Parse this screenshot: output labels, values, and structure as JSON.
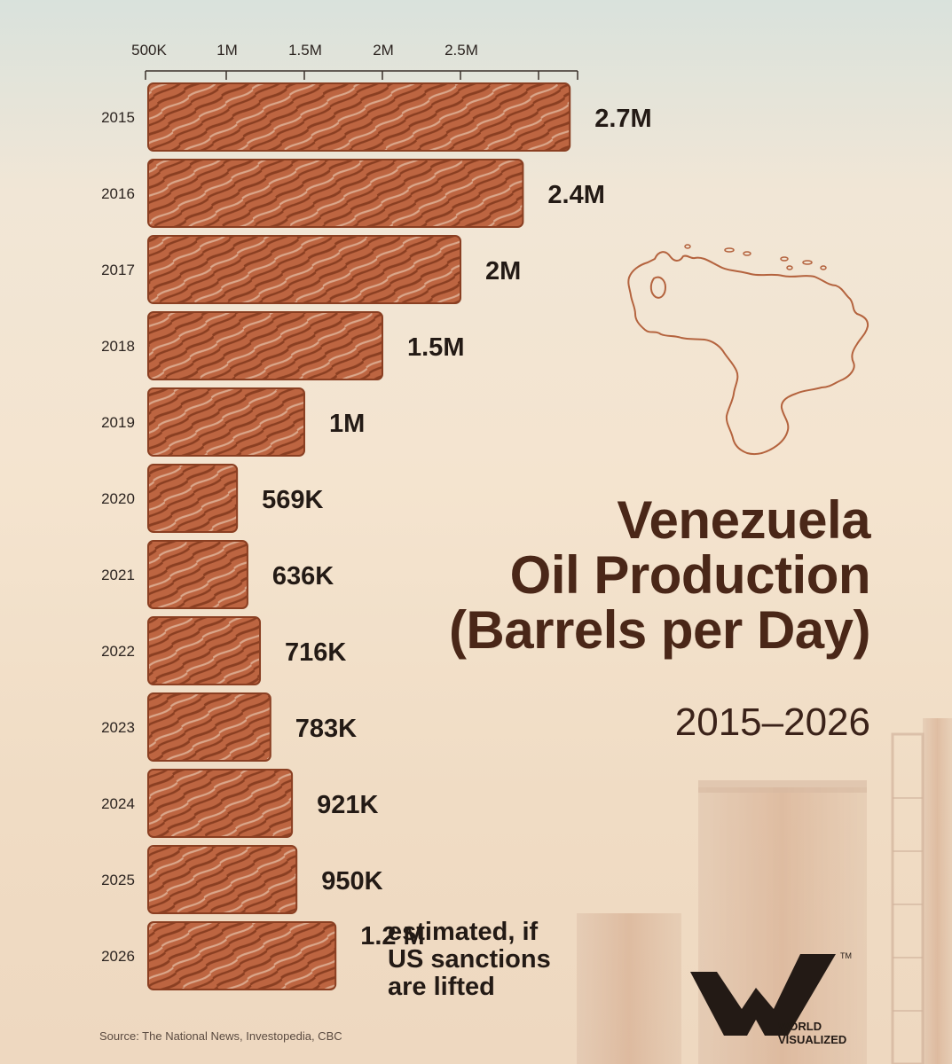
{
  "chart_data": {
    "type": "bar",
    "orientation": "horizontal",
    "title": "Venezuela Oil Production (Barrels per Day)",
    "subtitle": "2015–2026",
    "title_lines": [
      "Venezuela",
      "Oil Production",
      "(Barrels per Day)"
    ],
    "categories": [
      "2015",
      "2016",
      "2017",
      "2018",
      "2019",
      "2020",
      "2021",
      "2022",
      "2023",
      "2024",
      "2025",
      "2026"
    ],
    "values": [
      2700000,
      2400000,
      2000000,
      1500000,
      1000000,
      569000,
      636000,
      716000,
      783000,
      921000,
      950000,
      1200000
    ],
    "data_labels": [
      "2.7M",
      "2.4M",
      "2M",
      "1.5M",
      "1M",
      "569K",
      "636K",
      "716K",
      "783K",
      "921K",
      "950K",
      "1.2 M"
    ],
    "note_lines": [
      "estimated, if",
      "US sanctions",
      "are lifted"
    ],
    "xticks": [
      {
        "value": 500000,
        "label": "500K"
      },
      {
        "value": 1000000,
        "label": "1M"
      },
      {
        "value": 1500000,
        "label": "1.5M"
      },
      {
        "value": 2000000,
        "label": "2M"
      },
      {
        "value": 2500000,
        "label": "2.5M"
      }
    ],
    "xlim": [
      0,
      2750000
    ],
    "grid": false,
    "legend": "none",
    "bar_color": "#b8603c",
    "stroke_color": "#8a3f22",
    "map_color": "#b4633e"
  },
  "source": "Source: The National News, Investopedia, CBC",
  "logo": {
    "text_lines": [
      "WORLD",
      "VISUALIZED"
    ],
    "trademark": "TM"
  }
}
